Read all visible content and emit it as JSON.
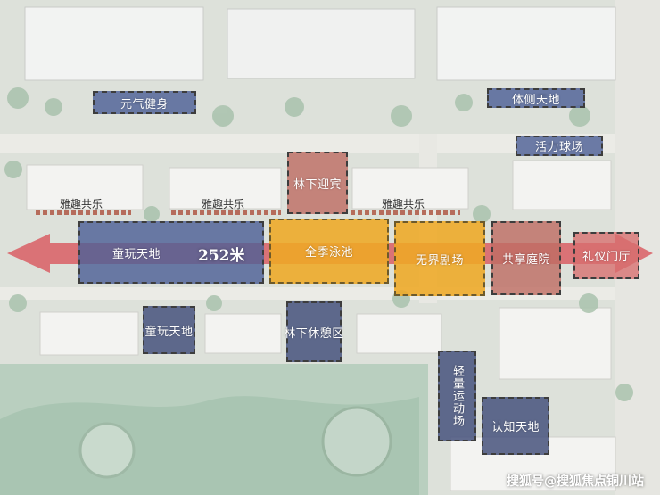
{
  "zones": {
    "yuanqi": "元气健身",
    "tice": "体侧天地",
    "huoli": "活力球场",
    "linxia_yingbin": "林下迎宾",
    "yaqu_1": "雅趣共乐",
    "yaqu_2": "雅趣共乐",
    "yaqu_3": "雅趣共乐",
    "tongwan_main": "童玩天地",
    "quanji": "全季泳池",
    "wujie": "无界剧场",
    "gongxiang": "共享庭院",
    "liyi": "礼仪门厅",
    "tongwan_small": "童玩天地",
    "linxia_xiuxi": "林下休憩区",
    "qingliang": "轻量运动场",
    "renzhi": "认知天地"
  },
  "axis": {
    "distance_label": "252米"
  },
  "watermark": "搜狐号@搜狐焦点铜川站"
}
